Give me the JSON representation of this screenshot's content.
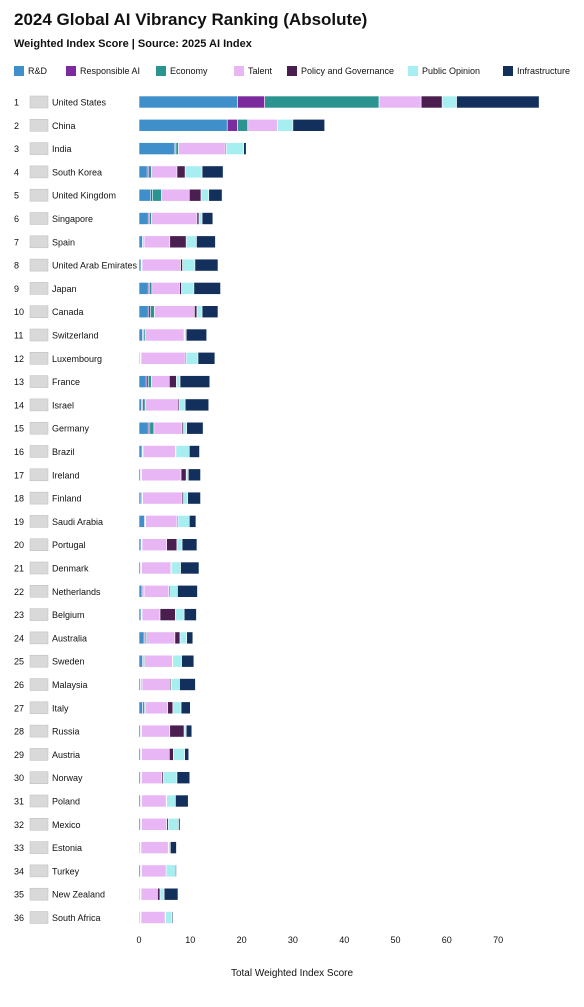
{
  "chart_data": {
    "type": "bar",
    "orientation": "horizontal",
    "stacked": true,
    "title": "2024 Global AI Vibrancy Ranking (Absolute)",
    "subtitle": "Weighted Index Score | Source: 2025 AI Index",
    "xlabel": "Total Weighted Index Score",
    "xlim": [
      0,
      78
    ],
    "xticks": [
      "0",
      "10",
      "20",
      "30",
      "40",
      "50",
      "60",
      "70"
    ],
    "grid": false,
    "legend_position": "top",
    "ranks": [
      "1",
      "2",
      "3",
      "4",
      "5",
      "6",
      "7",
      "8",
      "9",
      "10",
      "11",
      "12",
      "13",
      "14",
      "15",
      "16",
      "17",
      "18",
      "19",
      "20",
      "21",
      "22",
      "23",
      "24",
      "25",
      "26",
      "27",
      "28",
      "29",
      "30",
      "31",
      "32",
      "33",
      "34",
      "35",
      "36"
    ],
    "categories": [
      "United States",
      "China",
      "India",
      "South Korea",
      "United Kingdom",
      "Singapore",
      "Spain",
      "United Arab Emirates",
      "Japan",
      "Canada",
      "Switzerland",
      "Luxembourg",
      "France",
      "Israel",
      "Germany",
      "Brazil",
      "Ireland",
      "Finland",
      "Saudi Arabia",
      "Portugal",
      "Denmark",
      "Netherlands",
      "Belgium",
      "Australia",
      "Sweden",
      "Malaysia",
      "Italy",
      "Russia",
      "Austria",
      "Norway",
      "Poland",
      "Mexico",
      "Estonia",
      "Turkey",
      "New Zealand",
      "South Africa"
    ],
    "series": [
      {
        "name": "R&D",
        "color": "#3f8fca",
        "values": [
          19.2,
          17.2,
          7.0,
          1.6,
          2.3,
          1.8,
          0.7,
          0.4,
          1.8,
          1.8,
          0.7,
          0.2,
          1.4,
          0.5,
          1.8,
          0.6,
          0.3,
          0.4,
          1.1,
          0.4,
          0.3,
          0.6,
          0.4,
          1.0,
          0.7,
          0.3,
          0.7,
          0.3,
          0.3,
          0.3,
          0.3,
          0.3,
          0.2,
          0.3,
          0.2,
          0.2
        ]
      },
      {
        "name": "Responsible AI",
        "color": "#7b2b9e",
        "values": [
          5.3,
          2.0,
          0.2,
          0.3,
          0.3,
          0.2,
          0.1,
          0.1,
          0.2,
          0.4,
          0.2,
          0.1,
          0.4,
          0.2,
          0.3,
          0.1,
          0.1,
          0.2,
          0.1,
          0.1,
          0.1,
          0.2,
          0.1,
          0.2,
          0.2,
          0.1,
          0.3,
          0.1,
          0.1,
          0.1,
          0.1,
          0.1,
          0.1,
          0.1,
          0.1,
          0.1
        ]
      },
      {
        "name": "Economy",
        "color": "#2b9490",
        "values": [
          22.3,
          2.0,
          0.5,
          0.5,
          1.8,
          0.4,
          0.2,
          0.1,
          0.5,
          0.8,
          0.3,
          0.1,
          0.6,
          0.5,
          0.8,
          0.2,
          0.1,
          0.1,
          0.1,
          0.1,
          0.1,
          0.2,
          0.1,
          0.3,
          0.2,
          0.2,
          0.2,
          0.1,
          0.1,
          0.1,
          0.1,
          0.1,
          0.1,
          0.1,
          0.1,
          0.1
        ]
      },
      {
        "name": "Talent",
        "color": "#e8b5f5",
        "values": [
          8.2,
          5.8,
          9.1,
          5.0,
          5.4,
          8.9,
          5.0,
          7.5,
          5.4,
          7.8,
          7.6,
          8.6,
          3.5,
          6.3,
          5.5,
          6.2,
          7.7,
          7.7,
          6.1,
          4.8,
          5.7,
          4.8,
          3.5,
          5.5,
          5.4,
          5.5,
          4.4,
          5.5,
          5.4,
          3.9,
          4.8,
          4.9,
          5.3,
          4.8,
          3.2,
          4.7
        ]
      },
      {
        "name": "Policy and Governance",
        "color": "#4a1e4e",
        "values": [
          4.1,
          0.0,
          0.2,
          1.6,
          2.3,
          0.4,
          3.2,
          0.4,
          0.4,
          0.5,
          0.1,
          0.2,
          1.4,
          0.3,
          0.3,
          0.1,
          1.0,
          0.3,
          0.2,
          2.0,
          0.1,
          0.2,
          3.0,
          1.0,
          0.1,
          0.2,
          1.0,
          2.8,
          0.8,
          0.3,
          0.1,
          0.3,
          0.1,
          0.0,
          0.5,
          0.1
        ]
      },
      {
        "name": "Public Opinion",
        "color": "#a7eef1",
        "values": [
          2.8,
          3.0,
          3.4,
          3.3,
          1.5,
          0.6,
          2.0,
          2.4,
          2.4,
          1.0,
          0.3,
          2.3,
          0.7,
          1.2,
          0.6,
          2.6,
          0.4,
          0.8,
          2.2,
          1.0,
          1.8,
          1.5,
          1.7,
          1.3,
          1.7,
          1.6,
          1.6,
          0.4,
          2.2,
          2.7,
          1.7,
          2.0,
          0.3,
          1.8,
          0.8,
          1.2
        ]
      },
      {
        "name": "Infrastructure",
        "color": "#13305c",
        "values": [
          16.1,
          6.2,
          0.5,
          4.1,
          2.6,
          2.1,
          3.7,
          4.5,
          5.2,
          3.1,
          4.0,
          3.3,
          5.8,
          4.6,
          3.2,
          2.0,
          2.4,
          2.5,
          1.3,
          2.9,
          3.6,
          3.9,
          2.4,
          1.2,
          2.4,
          3.1,
          1.8,
          1.1,
          0.8,
          2.5,
          2.5,
          0.3,
          1.2,
          0.2,
          2.7,
          0.2
        ]
      }
    ]
  }
}
